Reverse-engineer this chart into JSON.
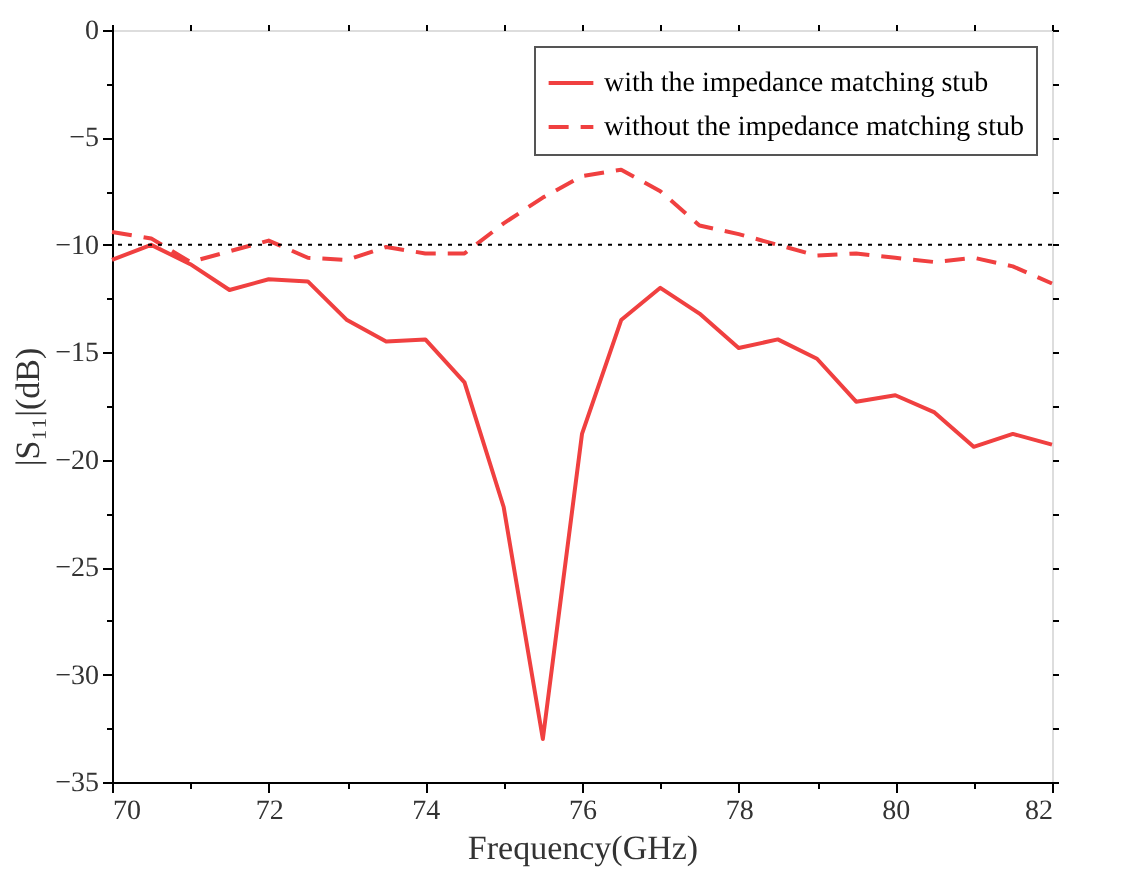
{
  "chart_data": {
    "type": "line",
    "xlabel": "Frequency(GHz)",
    "ylabel": "|S₁₁|(dB)",
    "x": [
      70,
      70.5,
      71,
      71.5,
      72,
      72.5,
      73,
      73.5,
      74,
      74.5,
      75,
      75.5,
      76,
      76.5,
      77,
      77.5,
      78,
      78.5,
      79,
      79.5,
      80,
      80.5,
      81,
      81.5,
      82
    ],
    "series": [
      {
        "name": "with the impedance matching stub",
        "color": "#f04040",
        "line_style": "solid",
        "values": [
          -10.7,
          -10.0,
          -10.9,
          -12.1,
          -11.6,
          -11.7,
          -13.5,
          -14.5,
          -14.4,
          -16.4,
          -22.2,
          -33.0,
          -18.8,
          -13.5,
          -12.0,
          -13.2,
          -14.8,
          -14.4,
          -15.3,
          -17.3,
          -17.0,
          -17.8,
          -19.4,
          -18.8,
          -19.3
        ]
      },
      {
        "name": "without the impedance matching stub",
        "color": "#f04040",
        "line_style": "dashed",
        "values": [
          -9.4,
          -9.7,
          -10.8,
          -10.3,
          -9.8,
          -10.6,
          -10.7,
          -10.1,
          -10.4,
          -10.4,
          -9.0,
          -7.8,
          -6.8,
          -6.5,
          -7.5,
          -9.1,
          -9.5,
          -10.0,
          -10.5,
          -10.4,
          -10.6,
          -10.8,
          -10.6,
          -11.0,
          -11.8
        ]
      }
    ],
    "xlim": [
      70,
      82
    ],
    "xticks": [
      70,
      72,
      74,
      76,
      78,
      80,
      82
    ],
    "ylim": [
      -35,
      0
    ],
    "yticks": [
      -35,
      -30,
      -25,
      -20,
      -15,
      -10,
      -5,
      0
    ],
    "ref_lines": [
      {
        "axis": "y",
        "value": -10,
        "color": "#000000",
        "line_style": "dotted"
      }
    ],
    "grid": false,
    "legend": "top right",
    "marker": "none"
  }
}
